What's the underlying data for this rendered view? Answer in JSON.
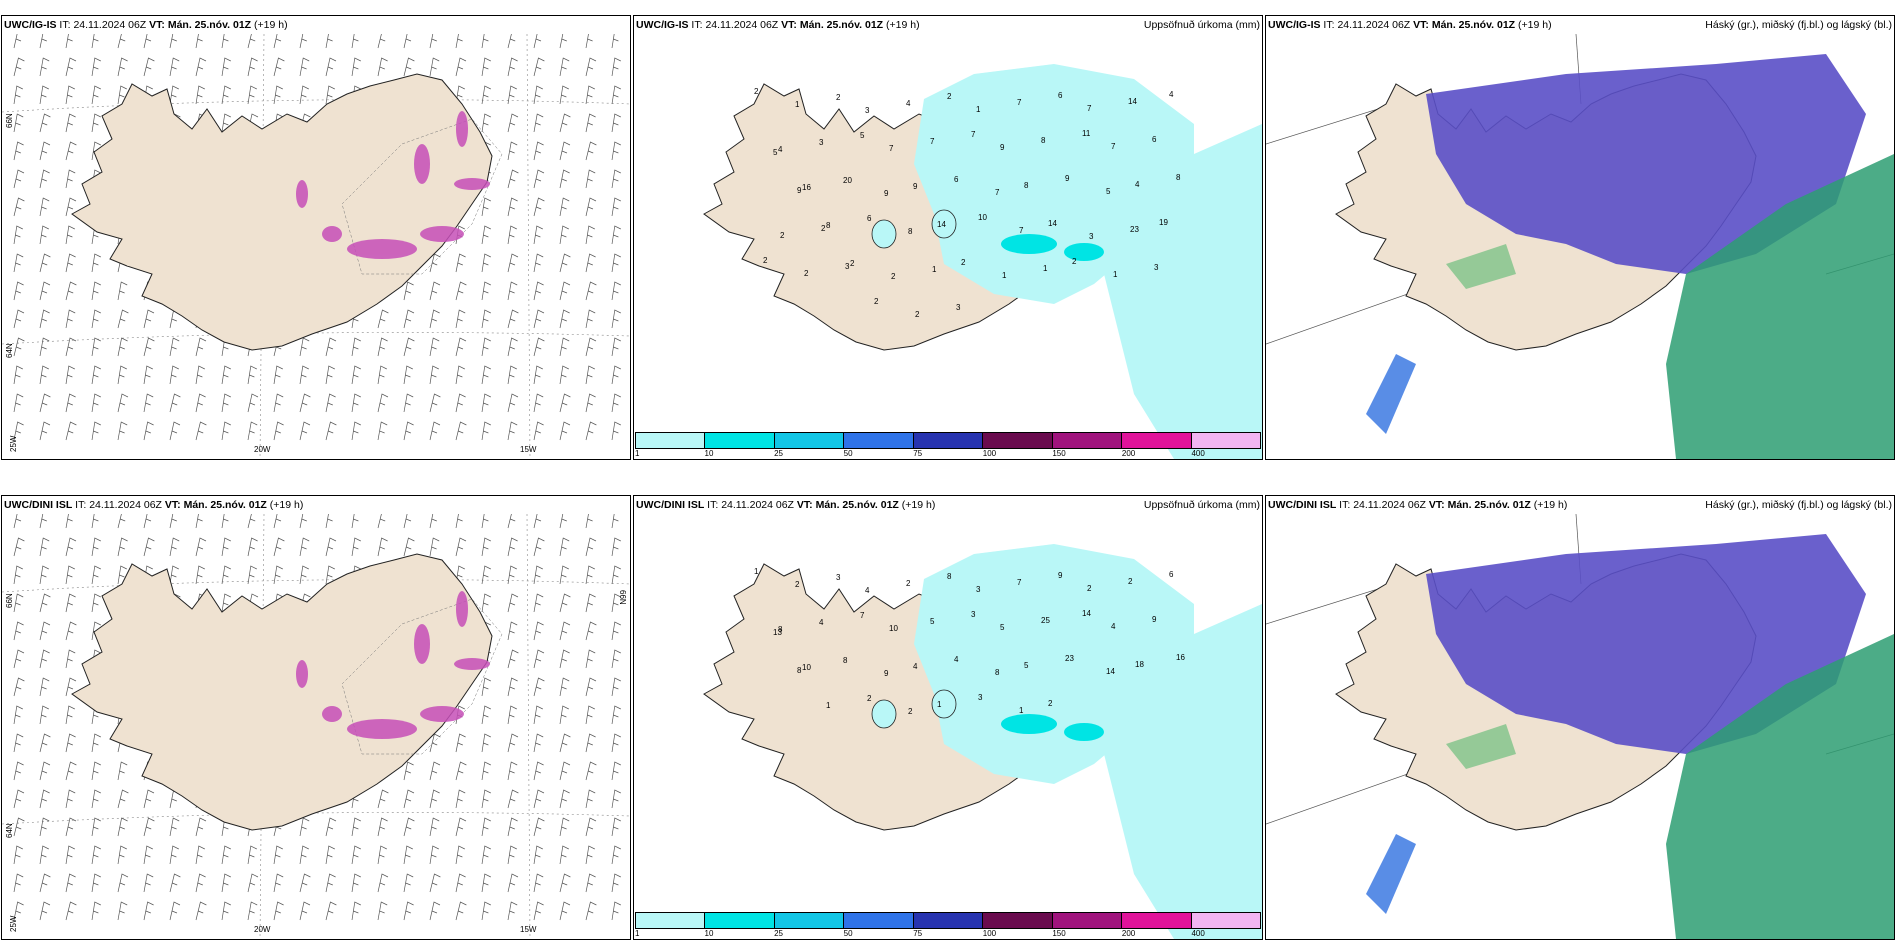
{
  "panels": [
    {
      "model": "UWC/IG-IS",
      "it_label": "IT:",
      "it": "24.11.2024 06Z",
      "vt_label": "VT:",
      "vt": "Mán. 25.nóv. 01Z",
      "lead": "(+19 h)",
      "right": "",
      "type": "wind",
      "axis_labels": {
        "lat_left": [
          "66N",
          "64N"
        ],
        "lon_bottom": [
          "20W",
          "15W"
        ],
        "corner": "25W",
        "lat_right": ""
      }
    },
    {
      "model": "UWC/IG-IS",
      "it_label": "IT:",
      "it": "24.11.2024 06Z",
      "vt_label": "VT:",
      "vt": "Mán. 25.nóv. 01Z",
      "lead": "(+19 h)",
      "right": "Uppsöfnuð úrkoma (mm)",
      "type": "precip",
      "numbers": [
        "2",
        "1",
        "2",
        "3",
        "4",
        "2",
        "1",
        "7",
        "6",
        "7",
        "14",
        "4",
        "4",
        "3",
        "5",
        "7",
        "7",
        "7",
        "9",
        "8",
        "11",
        "7",
        "6",
        "5",
        "16",
        "20",
        "9",
        "9",
        "6",
        "7",
        "8",
        "9",
        "5",
        "4",
        "8",
        "9",
        "8",
        "6",
        "8",
        "14",
        "10",
        "7",
        "14",
        "3",
        "23",
        "19",
        "2",
        "2",
        "2",
        "2",
        "1",
        "2",
        "1",
        "1",
        "2",
        "1",
        "3",
        "2",
        "2",
        "3",
        "2",
        "2",
        "3"
      ]
    },
    {
      "model": "UWC/IG-IS",
      "it_label": "IT:",
      "it": "24.11.2024 06Z",
      "vt_label": "VT:",
      "vt": "Mán. 25.nóv. 01Z",
      "lead": "(+19 h)",
      "right": "Háský (gr.), miðský (fj.bl.) og lágský (bl.)",
      "type": "cloud"
    },
    {
      "model": "UWC/DINI ISL",
      "it_label": "IT:",
      "it": "24.11.2024 06Z",
      "vt_label": "VT:",
      "vt": "Mán. 25.nóv. 01Z",
      "lead": "(+19 h)",
      "right": "",
      "type": "wind",
      "axis_labels": {
        "lat_left": [
          "66N",
          "64N"
        ],
        "lon_bottom": [
          "20W",
          "15W"
        ],
        "corner": "25W",
        "lat_right": "66N"
      }
    },
    {
      "model": "UWC/DINI ISL",
      "it_label": "IT:",
      "it": "24.11.2024 06Z",
      "vt_label": "VT:",
      "vt": "Mán. 25.nóv. 01Z",
      "lead": "(+19 h)",
      "right": "Uppsöfnuð úrkoma (mm)",
      "type": "precip",
      "numbers": [
        "1",
        "2",
        "3",
        "4",
        "2",
        "8",
        "3",
        "7",
        "9",
        "2",
        "2",
        "6",
        "8",
        "4",
        "7",
        "10",
        "5",
        "3",
        "5",
        "25",
        "14",
        "4",
        "9",
        "13",
        "10",
        "8",
        "9",
        "4",
        "4",
        "8",
        "5",
        "23",
        "14",
        "18",
        "16",
        "8",
        "1",
        "2",
        "2",
        "1",
        "3",
        "1",
        "2"
      ]
    },
    {
      "model": "UWC/DINI ISL",
      "it_label": "IT:",
      "it": "24.11.2024 06Z",
      "vt_label": "VT:",
      "vt": "Mán. 25.nóv. 01Z",
      "lead": "(+19 h)",
      "right": "Háský (gr.), miðský (fj.bl.) og lágský (bl.)",
      "type": "cloud"
    }
  ],
  "colorbar": {
    "ticks": [
      "1",
      "10",
      "25",
      "50",
      "75",
      "100",
      "150",
      "200",
      "400"
    ],
    "colors": [
      "#b9f7f7",
      "#00e4e4",
      "#12c6e6",
      "#2f73e8",
      "#2733b0",
      "#6a0b4e",
      "#a0137d",
      "#e1139a",
      "#f2b5f2"
    ]
  },
  "colors": {
    "land": "#efe2d1",
    "precip_light": "#b9f7f7",
    "precip_mid": "#00e4e4",
    "snow": "#c64fb8",
    "high_cloud": "#2d9d72",
    "mid_cloud": "#5a4fc7",
    "low_cloud": "#3070e0"
  }
}
